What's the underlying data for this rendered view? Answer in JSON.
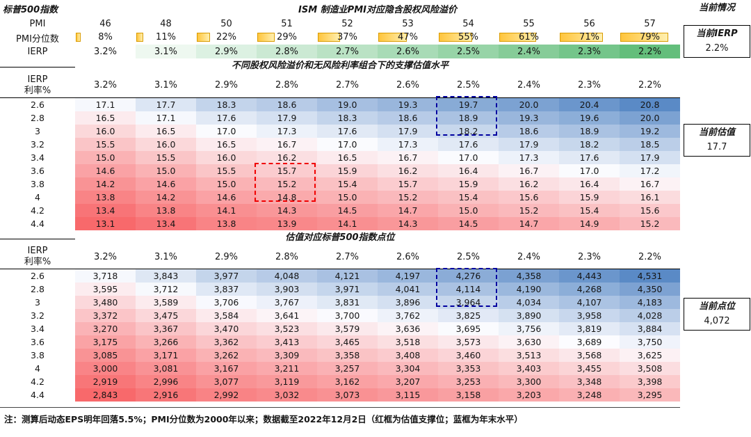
{
  "header": {
    "left_title": "标普500指数"
  },
  "sidebar": {
    "title": "当前情况",
    "boxes": [
      {
        "label": "当前IERP",
        "value": "2.2%"
      },
      {
        "label": "当前估值",
        "value": "17.7"
      },
      {
        "label": "当前点位",
        "value": "4,072"
      }
    ]
  },
  "note": "注：测算后动态EPS明年回落5.5%；PMI分位数为2000年以来；数据截至2022年12月2日（红框为估值支撑位；蓝框为年末水平）",
  "colors": {
    "heat_low": "#F8696B",
    "heat_mid": "#FCFCFF",
    "heat_high": "#5A8AC6",
    "green_low": "#FFFFFF",
    "green_high": "#63BE7B",
    "bar_fill": "#FFC53D",
    "bar_fill_light": "#FFEFAF",
    "bar_border": "#D99B00",
    "box_red": "#F00000",
    "box_blue": "#0000A0"
  },
  "chart_data": [
    {
      "type": "table",
      "title": "ISM 制造业PMI对应隐含股权风险溢价",
      "rows": [
        {
          "label": "PMI",
          "style": "plain",
          "values": [
            "46",
            "48",
            "50",
            "51",
            "52",
            "53",
            "54",
            "55",
            "56",
            "57"
          ]
        },
        {
          "label": "PMI分位数",
          "style": "databar",
          "values": [
            "8%",
            "11%",
            "22%",
            "29%",
            "37%",
            "47%",
            "55%",
            "61%",
            "71%",
            "79%"
          ],
          "bar_values": [
            8,
            11,
            22,
            29,
            37,
            47,
            55,
            61,
            71,
            79
          ]
        },
        {
          "label": "IERP",
          "style": "greenscale",
          "values": [
            "3.2%",
            "3.1%",
            "2.9%",
            "2.8%",
            "2.7%",
            "2.6%",
            "2.5%",
            "2.4%",
            "2.3%",
            "2.2%"
          ]
        }
      ]
    },
    {
      "type": "heatmap",
      "title": "不同股权风险溢价和无风险利率组合下的支撑估值水平",
      "x_label": "IERP",
      "y_label": "利率%",
      "columns": [
        "3.2%",
        "3.1%",
        "2.9%",
        "2.8%",
        "2.7%",
        "2.6%",
        "2.5%",
        "2.4%",
        "2.3%",
        "2.2%"
      ],
      "rows": [
        "2.6",
        "2.8",
        "3",
        "3.2",
        "3.4",
        "3.6",
        "3.8",
        "4",
        "4.2",
        "4.4"
      ],
      "values": [
        [
          17.1,
          17.7,
          18.3,
          18.6,
          19.0,
          19.3,
          19.7,
          20.0,
          20.4,
          20.8
        ],
        [
          16.5,
          17.1,
          17.6,
          17.9,
          18.3,
          18.6,
          18.9,
          19.3,
          19.6,
          20.0
        ],
        [
          16.0,
          16.5,
          17.0,
          17.3,
          17.6,
          17.9,
          18.2,
          18.6,
          18.9,
          19.2
        ],
        [
          15.5,
          16.0,
          16.5,
          16.7,
          17.0,
          17.3,
          17.6,
          17.9,
          18.2,
          18.5
        ],
        [
          15.0,
          15.5,
          16.0,
          16.2,
          16.5,
          16.7,
          17.0,
          17.3,
          17.6,
          17.9
        ],
        [
          14.6,
          15.0,
          15.5,
          15.7,
          15.9,
          16.2,
          16.4,
          16.7,
          17.0,
          17.2
        ],
        [
          14.2,
          14.6,
          15.0,
          15.2,
          15.4,
          15.7,
          15.9,
          16.2,
          16.4,
          16.7
        ],
        [
          13.8,
          14.2,
          14.6,
          14.8,
          15.0,
          15.2,
          15.4,
          15.6,
          15.9,
          16.1
        ],
        [
          13.4,
          13.8,
          14.1,
          14.3,
          14.5,
          14.7,
          15.0,
          15.2,
          15.4,
          15.6
        ],
        [
          13.1,
          13.4,
          13.8,
          13.9,
          14.1,
          14.3,
          14.5,
          14.7,
          14.9,
          15.2
        ]
      ],
      "min": 13.1,
      "mid": 16.95,
      "max": 20.8,
      "boxes": [
        {
          "color": "red",
          "col": 3,
          "row_start": 5,
          "row_end": 7
        },
        {
          "color": "blue",
          "col": 6,
          "row_start": 0,
          "row_end": 2
        }
      ]
    },
    {
      "type": "heatmap",
      "title": "估值对应标普500指数点位",
      "x_label": "IERP",
      "y_label": "利率%",
      "columns": [
        "3.2%",
        "3.1%",
        "2.9%",
        "2.8%",
        "2.7%",
        "2.6%",
        "2.5%",
        "2.4%",
        "2.3%",
        "2.2%"
      ],
      "rows": [
        "2.6",
        "2.8",
        "3",
        "3.2",
        "3.4",
        "3.6",
        "3.8",
        "4",
        "4.2",
        "4.4"
      ],
      "values": [
        [
          3718,
          3843,
          3977,
          4048,
          4121,
          4197,
          4276,
          4358,
          4443,
          4531
        ],
        [
          3595,
          3712,
          3837,
          3903,
          3971,
          4041,
          4114,
          4190,
          4268,
          4350
        ],
        [
          3480,
          3589,
          3706,
          3767,
          3831,
          3896,
          3964,
          4034,
          4107,
          4183
        ],
        [
          3372,
          3475,
          3584,
          3641,
          3700,
          3762,
          3825,
          3890,
          3958,
          4028
        ],
        [
          3270,
          3367,
          3470,
          3523,
          3579,
          3636,
          3695,
          3756,
          3819,
          3884
        ],
        [
          3175,
          3266,
          3362,
          3413,
          3465,
          3518,
          3573,
          3630,
          3689,
          3750
        ],
        [
          3085,
          3171,
          3262,
          3309,
          3358,
          3408,
          3460,
          3513,
          3568,
          3625
        ],
        [
          3000,
          3081,
          3167,
          3211,
          3257,
          3304,
          3353,
          3403,
          3455,
          3508
        ],
        [
          2919,
          2996,
          3077,
          3119,
          3162,
          3207,
          3253,
          3300,
          3348,
          3398
        ],
        [
          2843,
          2916,
          2992,
          3032,
          3073,
          3115,
          3158,
          3203,
          3248,
          3295
        ]
      ],
      "min": 2843,
      "mid": 3687,
      "max": 4531,
      "boxes": [
        {
          "color": "blue",
          "col": 6,
          "row_start": 0,
          "row_end": 2
        }
      ]
    }
  ]
}
